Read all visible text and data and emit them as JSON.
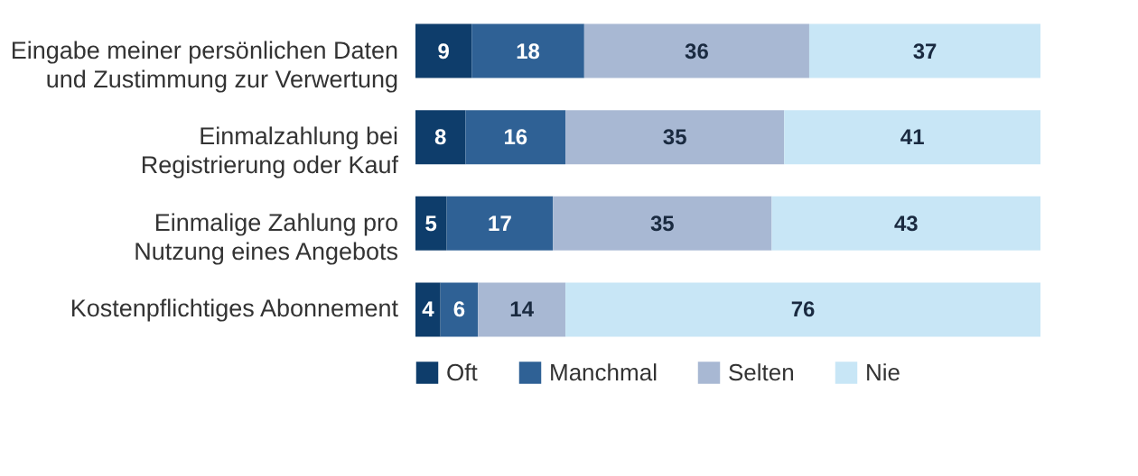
{
  "chart_data": {
    "type": "bar",
    "orientation": "horizontal",
    "stacked": true,
    "data_labels": true,
    "legend": "bottom",
    "xlim": [
      0,
      100
    ],
    "categories": [
      "Eingabe meiner persönlichen Daten und Zustimmung zur Verwertung",
      "Einmalzahlung bei Registrierung oder Kauf",
      "Einmalige Zahlung pro Nutzung eines Angebots",
      "Kostenpflichtiges Abonnement"
    ],
    "series": [
      {
        "name": "Oft",
        "color": "#0e3d6b",
        "values": [
          9,
          8,
          5,
          4
        ]
      },
      {
        "name": "Manchmal",
        "color": "#2f6195",
        "values": [
          18,
          16,
          17,
          6
        ]
      },
      {
        "name": "Selten",
        "color": "#a8b8d3",
        "values": [
          36,
          35,
          35,
          14
        ]
      },
      {
        "name": "Nie",
        "color": "#c8e6f6",
        "values": [
          37,
          41,
          43,
          76
        ]
      }
    ]
  }
}
